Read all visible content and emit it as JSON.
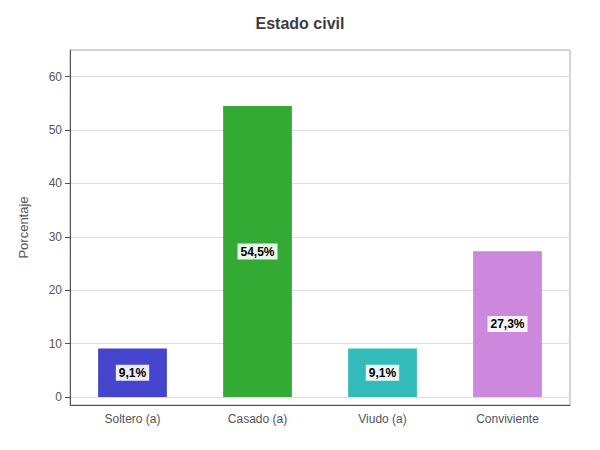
{
  "chart_data": {
    "type": "bar",
    "title": "Estado civil",
    "ylabel": "Porcentaje",
    "categories": [
      "Soltero (a)",
      "Casado (a)",
      "Viudo (a)",
      "Conviviente"
    ],
    "values": [
      9.1,
      54.5,
      9.1,
      27.3
    ],
    "value_labels": [
      "9,1%",
      "54,5%",
      "9,1%",
      "27,3%"
    ],
    "colors": [
      "#4444cc",
      "#33aa33",
      "#33bbbb",
      "#cc88dd"
    ],
    "ylim": [
      -1.5,
      65
    ],
    "yticks": [
      0,
      10,
      20,
      30,
      40,
      50,
      60
    ],
    "grid": true,
    "data_labels": true
  }
}
